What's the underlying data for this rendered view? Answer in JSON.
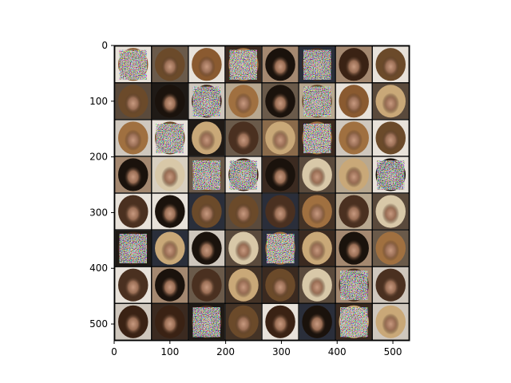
{
  "chart_data": {
    "type": "heatmap",
    "description_of_content": "",
    "grid": {
      "rows": 8,
      "cols": 8,
      "tile_size": 66,
      "border": 2
    },
    "xlim": [
      0,
      530
    ],
    "ylim": [
      530,
      0
    ],
    "xticks": [
      0,
      100,
      200,
      300,
      400,
      500
    ],
    "yticks": [
      0,
      100,
      200,
      300,
      400,
      500
    ],
    "xtick_labels": [
      "0",
      "100",
      "200",
      "300",
      "400",
      "500"
    ],
    "ytick_labels": [
      "0",
      "100",
      "200",
      "300",
      "400",
      "500"
    ],
    "noisy_tiles": [
      [
        0,
        0
      ],
      [
        0,
        3
      ],
      [
        0,
        5
      ],
      [
        1,
        2
      ],
      [
        1,
        5
      ],
      [
        2,
        1
      ],
      [
        2,
        5
      ],
      [
        3,
        2
      ],
      [
        3,
        3
      ],
      [
        3,
        7
      ],
      [
        5,
        0
      ],
      [
        5,
        4
      ],
      [
        6,
        6
      ],
      [
        7,
        2
      ],
      [
        7,
        6
      ]
    ],
    "palette": {
      "frame": "#000000",
      "tile_border": "#000000"
    },
    "title": "",
    "xlabel": "",
    "ylabel": ""
  }
}
